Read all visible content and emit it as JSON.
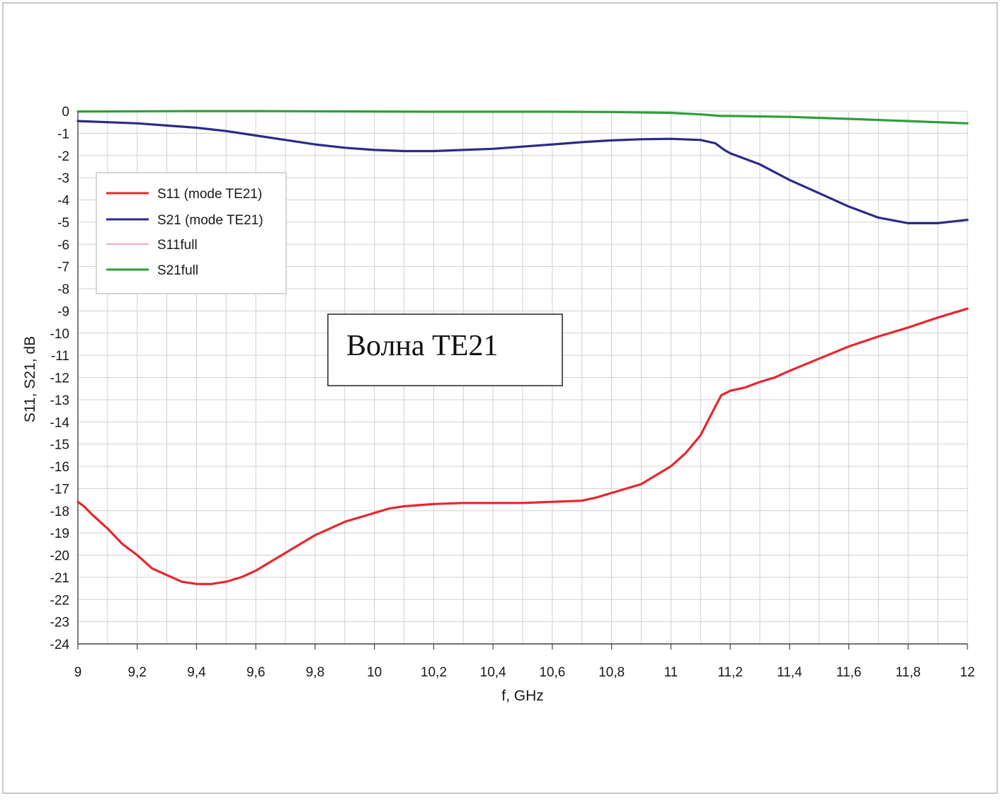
{
  "chart_data": {
    "type": "line",
    "xlabel": "f, GHz",
    "ylabel": "S11, S21, dB",
    "xlim": [
      9,
      12
    ],
    "ylim": [
      -24,
      0
    ],
    "x_ticks": [
      "9",
      "9,2",
      "9,4",
      "9,6",
      "9,8",
      "10",
      "10,2",
      "10,4",
      "10,6",
      "10,8",
      "11",
      "11,2",
      "11,4",
      "11,6",
      "11,8",
      "12"
    ],
    "x_tick_values": [
      9,
      9.2,
      9.4,
      9.6,
      9.8,
      10,
      10.2,
      10.4,
      10.6,
      10.8,
      11,
      11.2,
      11.4,
      11.6,
      11.8,
      12
    ],
    "y_ticks": [
      "0",
      "-1",
      "-2",
      "-3",
      "-4",
      "-5",
      "-6",
      "-7",
      "-8",
      "-9",
      "-10",
      "-11",
      "-12",
      "-13",
      "-14",
      "-15",
      "-16",
      "-17",
      "-18",
      "-19",
      "-20",
      "-21",
      "-22",
      "-23",
      "-24"
    ],
    "y_tick_values": [
      0,
      -1,
      -2,
      -3,
      -4,
      -5,
      -6,
      -7,
      -8,
      -9,
      -10,
      -11,
      -12,
      -13,
      -14,
      -15,
      -16,
      -17,
      -18,
      -19,
      -20,
      -21,
      -22,
      -23,
      -24
    ],
    "grid": true,
    "legend_position": "top-left",
    "annotation": "Волна TE21",
    "series": [
      {
        "name": "S11 (mode TE21)",
        "color": "#e8262d",
        "x": [
          9.0,
          9.02,
          9.05,
          9.1,
          9.15,
          9.2,
          9.25,
          9.3,
          9.35,
          9.4,
          9.45,
          9.5,
          9.55,
          9.6,
          9.65,
          9.7,
          9.75,
          9.8,
          9.85,
          9.9,
          9.95,
          10.0,
          10.05,
          10.1,
          10.15,
          10.2,
          10.3,
          10.4,
          10.5,
          10.6,
          10.7,
          10.75,
          10.8,
          10.85,
          10.9,
          10.95,
          11.0,
          11.05,
          11.1,
          11.15,
          11.17,
          11.2,
          11.25,
          11.3,
          11.35,
          11.4,
          11.5,
          11.6,
          11.7,
          11.8,
          11.9,
          12.0
        ],
        "y": [
          -17.6,
          -17.8,
          -18.2,
          -18.8,
          -19.5,
          -20.0,
          -20.6,
          -20.9,
          -21.2,
          -21.3,
          -21.3,
          -21.2,
          -21.0,
          -20.7,
          -20.3,
          -19.9,
          -19.5,
          -19.1,
          -18.8,
          -18.5,
          -18.3,
          -18.1,
          -17.9,
          -17.8,
          -17.75,
          -17.7,
          -17.65,
          -17.65,
          -17.65,
          -17.6,
          -17.55,
          -17.4,
          -17.2,
          -17.0,
          -16.8,
          -16.4,
          -16.0,
          -15.4,
          -14.6,
          -13.3,
          -12.8,
          -12.6,
          -12.45,
          -12.2,
          -12.0,
          -11.7,
          -11.15,
          -10.6,
          -10.15,
          -9.75,
          -9.3,
          -8.9
        ]
      },
      {
        "name": "S21 (mode TE21)",
        "color": "#2c2a8a",
        "x": [
          9.0,
          9.1,
          9.2,
          9.3,
          9.4,
          9.5,
          9.6,
          9.7,
          9.8,
          9.9,
          10.0,
          10.1,
          10.2,
          10.3,
          10.4,
          10.5,
          10.6,
          10.7,
          10.8,
          10.9,
          11.0,
          11.1,
          11.15,
          11.18,
          11.2,
          11.3,
          11.4,
          11.5,
          11.6,
          11.7,
          11.8,
          11.9,
          12.0
        ],
        "y": [
          -0.45,
          -0.5,
          -0.55,
          -0.65,
          -0.75,
          -0.9,
          -1.1,
          -1.3,
          -1.5,
          -1.65,
          -1.75,
          -1.8,
          -1.8,
          -1.75,
          -1.7,
          -1.6,
          -1.5,
          -1.4,
          -1.32,
          -1.27,
          -1.25,
          -1.3,
          -1.45,
          -1.75,
          -1.9,
          -2.4,
          -3.1,
          -3.7,
          -4.3,
          -4.8,
          -5.05,
          -5.05,
          -4.9
        ]
      },
      {
        "name": "S11full",
        "color": "#e48ac0",
        "x": [],
        "y": []
      },
      {
        "name": "S21full",
        "color": "#2e9e3a",
        "x": [
          9.0,
          9.2,
          9.4,
          9.6,
          9.8,
          10.0,
          10.2,
          10.4,
          10.6,
          10.8,
          11.0,
          11.1,
          11.17,
          11.2,
          11.4,
          11.6,
          11.8,
          12.0
        ],
        "y": [
          -0.02,
          -0.01,
          0.0,
          0.0,
          -0.01,
          -0.02,
          -0.03,
          -0.03,
          -0.03,
          -0.04,
          -0.08,
          -0.15,
          -0.22,
          -0.22,
          -0.26,
          -0.35,
          -0.45,
          -0.55
        ]
      }
    ]
  }
}
